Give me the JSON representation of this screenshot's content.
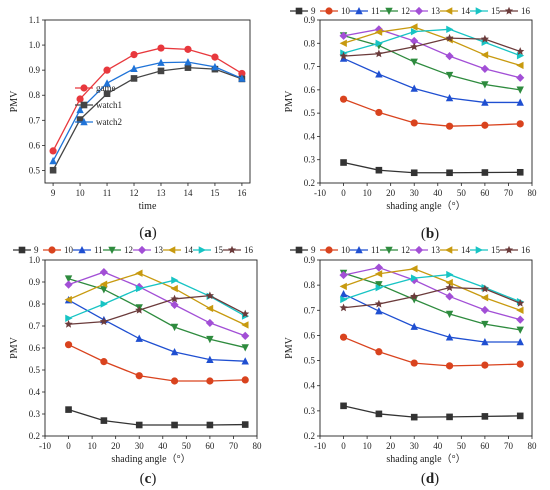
{
  "figure": {
    "colors": {
      "9": "#333333",
      "10": "#d9431e",
      "11": "#1f4fd1",
      "12": "#2e8b3e",
      "13": "#a24fd6",
      "14": "#c89a0f",
      "15": "#17c4c4",
      "16": "#6b3b3b",
      "game": "#e8383d",
      "watch1": "#444444",
      "watch2": "#1f73d8"
    }
  },
  "chart_data": [
    {
      "id": "a",
      "type": "line",
      "panel_label": "a",
      "xlabel": "time",
      "ylabel": "PMV",
      "xlim": [
        8.7,
        16.3
      ],
      "ylim": [
        0.45,
        1.1
      ],
      "xticks": [
        9,
        10,
        11,
        12,
        13,
        14,
        15,
        16
      ],
      "yticks": [
        0.5,
        0.6,
        0.7,
        0.8,
        0.9,
        1.0,
        1.1
      ],
      "ytick_labels": [
        "0.5",
        "0.6",
        "0.7",
        "0.8",
        "0.9",
        "1.0",
        "1.1"
      ],
      "legend_position": "middle-center",
      "x": [
        9,
        10,
        11,
        12,
        13,
        14,
        15,
        16
      ],
      "series": [
        {
          "name": "game",
          "marker": "circle",
          "color": "#e8383d",
          "values": [
            0.578,
            0.785,
            0.9,
            0.962,
            0.988,
            0.983,
            0.952,
            0.887
          ]
        },
        {
          "name": "watch1",
          "marker": "square",
          "color": "#444444",
          "values": [
            0.501,
            0.703,
            0.806,
            0.867,
            0.897,
            0.91,
            0.904,
            0.865
          ]
        },
        {
          "name": "watch2",
          "marker": "triangle",
          "color": "#1f73d8",
          "values": [
            0.538,
            0.742,
            0.848,
            0.906,
            0.93,
            0.932,
            0.913,
            0.867
          ]
        }
      ]
    },
    {
      "id": "b",
      "type": "line",
      "panel_label": "b",
      "xlabel": "shading angle（°）",
      "ylabel": "PMV",
      "xlim": [
        -10,
        80
      ],
      "ylim": [
        0.2,
        0.9
      ],
      "xticks": [
        -10,
        0,
        10,
        20,
        30,
        40,
        50,
        60,
        70,
        80
      ],
      "yticks": [
        0.2,
        0.3,
        0.4,
        0.5,
        0.6,
        0.7,
        0.8,
        0.9
      ],
      "ytick_labels": [
        "0.2",
        "0.3",
        "0.4",
        "0.5",
        "0.6",
        "0.7",
        "0.8",
        "0.9"
      ],
      "legend_position": "top",
      "x": [
        0,
        15,
        30,
        45,
        60,
        75
      ],
      "series": [
        {
          "name": "9",
          "marker": "square",
          "color": "#333333",
          "values": [
            0.288,
            0.255,
            0.244,
            0.244,
            0.245,
            0.246
          ]
        },
        {
          "name": "10",
          "marker": "circle",
          "color": "#d9431e",
          "values": [
            0.56,
            0.503,
            0.458,
            0.444,
            0.448,
            0.454
          ]
        },
        {
          "name": "11",
          "marker": "triangle",
          "color": "#1f4fd1",
          "values": [
            0.735,
            0.667,
            0.606,
            0.565,
            0.546,
            0.546
          ]
        },
        {
          "name": "12",
          "marker": "triangle-down",
          "color": "#2e8b3e",
          "values": [
            0.833,
            0.79,
            0.72,
            0.663,
            0.623,
            0.6
          ]
        },
        {
          "name": "13",
          "marker": "diamond",
          "color": "#a24fd6",
          "values": [
            0.832,
            0.86,
            0.81,
            0.745,
            0.69,
            0.652
          ]
        },
        {
          "name": "14",
          "marker": "triangle-left",
          "color": "#c89a0f",
          "values": [
            0.8,
            0.848,
            0.87,
            0.815,
            0.75,
            0.705
          ]
        },
        {
          "name": "15",
          "marker": "triangle-right",
          "color": "#17c4c4",
          "values": [
            0.758,
            0.8,
            0.85,
            0.86,
            0.804,
            0.747
          ]
        },
        {
          "name": "16",
          "marker": "star",
          "color": "#6b3b3b",
          "values": [
            0.745,
            0.755,
            0.785,
            0.822,
            0.818,
            0.765
          ]
        }
      ]
    },
    {
      "id": "c",
      "type": "line",
      "panel_label": "c",
      "xlabel": "shading angle（°）",
      "ylabel": "PMV",
      "xlim": [
        -10,
        80
      ],
      "ylim": [
        0.2,
        1.0
      ],
      "xticks": [
        -10,
        0,
        10,
        20,
        30,
        40,
        50,
        60,
        70,
        80
      ],
      "yticks": [
        0.2,
        0.3,
        0.4,
        0.5,
        0.6,
        0.7,
        0.8,
        0.9,
        1.0
      ],
      "ytick_labels": [
        "0.2",
        "0.3",
        "0.4",
        "0.5",
        "0.6",
        "0.7",
        "0.8",
        "0.9",
        "1.0"
      ],
      "legend_position": "top",
      "x": [
        0,
        15,
        30,
        45,
        60,
        75
      ],
      "series": [
        {
          "name": "9",
          "marker": "square",
          "color": "#333333",
          "values": [
            0.32,
            0.27,
            0.25,
            0.25,
            0.25,
            0.252
          ]
        },
        {
          "name": "10",
          "marker": "circle",
          "color": "#d9431e",
          "values": [
            0.615,
            0.538,
            0.474,
            0.45,
            0.45,
            0.455
          ]
        },
        {
          "name": "11",
          "marker": "triangle",
          "color": "#1f4fd1",
          "values": [
            0.818,
            0.728,
            0.643,
            0.582,
            0.547,
            0.54
          ]
        },
        {
          "name": "12",
          "marker": "triangle-down",
          "color": "#2e8b3e",
          "values": [
            0.915,
            0.866,
            0.784,
            0.695,
            0.64,
            0.602
          ]
        },
        {
          "name": "13",
          "marker": "diamond",
          "color": "#a24fd6",
          "values": [
            0.888,
            0.945,
            0.878,
            0.796,
            0.714,
            0.655
          ]
        },
        {
          "name": "14",
          "marker": "triangle-left",
          "color": "#c89a0f",
          "values": [
            0.82,
            0.89,
            0.94,
            0.87,
            0.78,
            0.705
          ]
        },
        {
          "name": "15",
          "marker": "triangle-right",
          "color": "#17c4c4",
          "values": [
            0.735,
            0.8,
            0.87,
            0.908,
            0.835,
            0.745
          ]
        },
        {
          "name": "16",
          "marker": "star",
          "color": "#6b3b3b",
          "values": [
            0.708,
            0.72,
            0.772,
            0.823,
            0.838,
            0.755
          ]
        }
      ]
    },
    {
      "id": "d",
      "type": "line",
      "panel_label": "d",
      "xlabel": "shading angle（°）",
      "ylabel": "PMV",
      "xlim": [
        -10,
        80
      ],
      "ylim": [
        0.2,
        0.9
      ],
      "xticks": [
        -10,
        0,
        10,
        20,
        30,
        40,
        50,
        60,
        70,
        80
      ],
      "yticks": [
        0.2,
        0.3,
        0.4,
        0.5,
        0.6,
        0.7,
        0.8,
        0.9
      ],
      "ytick_labels": [
        "0.2",
        "0.3",
        "0.4",
        "0.5",
        "0.6",
        "0.7",
        "0.8",
        "0.9"
      ],
      "legend_position": "top",
      "x": [
        0,
        15,
        30,
        45,
        60,
        75
      ],
      "series": [
        {
          "name": "9",
          "marker": "square",
          "color": "#333333",
          "values": [
            0.32,
            0.288,
            0.275,
            0.276,
            0.278,
            0.28
          ]
        },
        {
          "name": "10",
          "marker": "circle",
          "color": "#d9431e",
          "values": [
            0.593,
            0.535,
            0.49,
            0.479,
            0.482,
            0.486
          ]
        },
        {
          "name": "11",
          "marker": "triangle",
          "color": "#1f4fd1",
          "values": [
            0.765,
            0.697,
            0.635,
            0.593,
            0.574,
            0.574
          ]
        },
        {
          "name": "12",
          "marker": "triangle-down",
          "color": "#2e8b3e",
          "values": [
            0.848,
            0.803,
            0.743,
            0.685,
            0.645,
            0.622
          ]
        },
        {
          "name": "13",
          "marker": "diamond",
          "color": "#a24fd6",
          "values": [
            0.84,
            0.87,
            0.82,
            0.755,
            0.701,
            0.663
          ]
        },
        {
          "name": "14",
          "marker": "triangle-left",
          "color": "#c89a0f",
          "values": [
            0.795,
            0.845,
            0.865,
            0.81,
            0.75,
            0.7
          ]
        },
        {
          "name": "15",
          "marker": "triangle-right",
          "color": "#17c4c4",
          "values": [
            0.743,
            0.79,
            0.828,
            0.842,
            0.79,
            0.734
          ]
        },
        {
          "name": "16",
          "marker": "star",
          "color": "#6b3b3b",
          "values": [
            0.71,
            0.725,
            0.755,
            0.79,
            0.785,
            0.728
          ]
        }
      ]
    }
  ]
}
